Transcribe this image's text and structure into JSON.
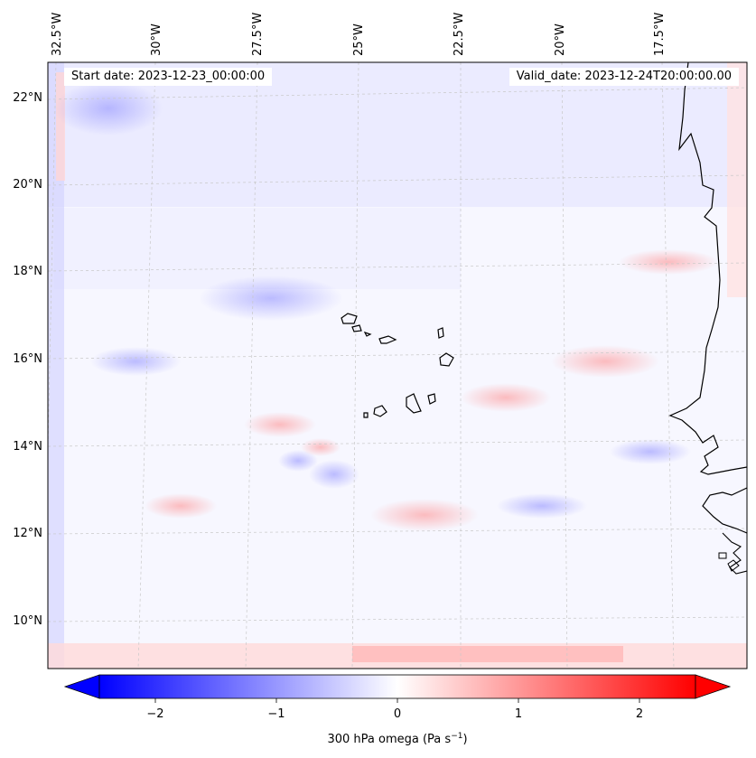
{
  "map": {
    "start_date": "Start date: 2023-12-23_00:00:00",
    "valid_date": "Valid_date: 2023-12-24T20:00:00.00",
    "lon_labels": [
      "32.5°W",
      "30°W",
      "27.5°W",
      "25°W",
      "22.5°W",
      "20°W",
      "17.5°W"
    ],
    "lat_labels": [
      "22°N",
      "20°N",
      "18°N",
      "16°N",
      "14°N",
      "12°N",
      "10°N"
    ],
    "variable": "300 hPa omega",
    "units": "Pa s",
    "units_exponent": "−1"
  },
  "colorbar": {
    "tick_labels": [
      "−2",
      "−1",
      "0",
      "1",
      "2"
    ],
    "min_color": "#0000ff",
    "mid_color": "#ffffff",
    "max_color": "#ff0000",
    "range": [
      -2.5,
      2.5
    ]
  },
  "colors": {
    "coast": "#000000",
    "grid": "#c8c8c8"
  }
}
